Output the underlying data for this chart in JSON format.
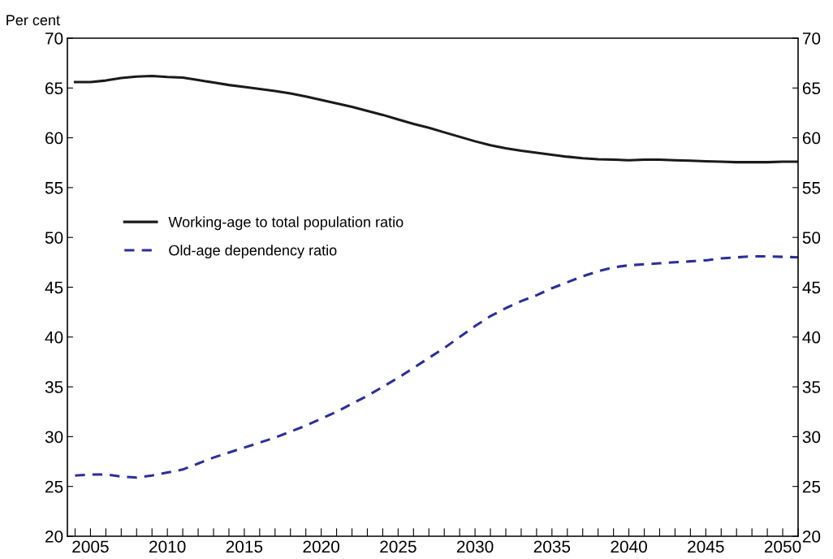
{
  "chart_data": {
    "type": "line",
    "ylabel": "Per cent",
    "x": [
      2004,
      2005,
      2006,
      2007,
      2008,
      2009,
      2010,
      2011,
      2012,
      2013,
      2014,
      2015,
      2016,
      2017,
      2018,
      2019,
      2020,
      2021,
      2022,
      2023,
      2024,
      2025,
      2026,
      2027,
      2028,
      2029,
      2030,
      2031,
      2032,
      2033,
      2034,
      2035,
      2036,
      2037,
      2038,
      2039,
      2040,
      2041,
      2042,
      2043,
      2044,
      2045,
      2046,
      2047,
      2048,
      2049,
      2050,
      2051
    ],
    "series": [
      {
        "name": "Working-age to total population ratio",
        "color": "#1a1a1a",
        "line_style": "solid",
        "values": [
          65.6,
          65.6,
          65.75,
          66.0,
          66.15,
          66.2,
          66.1,
          66.05,
          65.8,
          65.55,
          65.3,
          65.1,
          64.9,
          64.7,
          64.45,
          64.15,
          63.8,
          63.45,
          63.1,
          62.7,
          62.3,
          61.85,
          61.4,
          61.0,
          60.55,
          60.1,
          59.65,
          59.25,
          58.95,
          58.7,
          58.5,
          58.3,
          58.1,
          57.95,
          57.85,
          57.8,
          57.75,
          57.8,
          57.8,
          57.75,
          57.7,
          57.65,
          57.6,
          57.55,
          57.55,
          57.55,
          57.6,
          57.6
        ]
      },
      {
        "name": "Old-age dependency ratio",
        "color": "#2b2f9a",
        "line_style": "dashed",
        "values": [
          26.1,
          26.2,
          26.2,
          26.0,
          25.9,
          26.1,
          26.4,
          26.7,
          27.3,
          27.9,
          28.4,
          28.9,
          29.4,
          29.9,
          30.5,
          31.1,
          31.8,
          32.5,
          33.3,
          34.1,
          35.0,
          35.9,
          36.9,
          37.9,
          38.9,
          40.0,
          41.1,
          42.1,
          42.9,
          43.6,
          44.2,
          44.9,
          45.5,
          46.1,
          46.6,
          47.0,
          47.2,
          47.3,
          47.4,
          47.5,
          47.6,
          47.7,
          47.9,
          48.0,
          48.1,
          48.1,
          48.05,
          48.0
        ]
      }
    ],
    "xlim": [
      2003.5,
      2051.0
    ],
    "xticks": [
      {
        "value": 2004,
        "label": null
      },
      2005,
      {
        "value": 2006,
        "label": null
      },
      {
        "value": 2007,
        "label": null
      },
      {
        "value": 2008,
        "label": null
      },
      {
        "value": 2009,
        "label": null
      },
      2010,
      {
        "value": 2011,
        "label": null
      },
      {
        "value": 2012,
        "label": null
      },
      {
        "value": 2013,
        "label": null
      },
      {
        "value": 2014,
        "label": null
      },
      2015,
      {
        "value": 2016,
        "label": null
      },
      {
        "value": 2017,
        "label": null
      },
      {
        "value": 2018,
        "label": null
      },
      {
        "value": 2019,
        "label": null
      },
      2020,
      {
        "value": 2021,
        "label": null
      },
      {
        "value": 2022,
        "label": null
      },
      {
        "value": 2023,
        "label": null
      },
      {
        "value": 2024,
        "label": null
      },
      2025,
      {
        "value": 2026,
        "label": null
      },
      {
        "value": 2027,
        "label": null
      },
      {
        "value": 2028,
        "label": null
      },
      {
        "value": 2029,
        "label": null
      },
      2030,
      {
        "value": 2031,
        "label": null
      },
      {
        "value": 2032,
        "label": null
      },
      {
        "value": 2033,
        "label": null
      },
      {
        "value": 2034,
        "label": null
      },
      2035,
      {
        "value": 2036,
        "label": null
      },
      {
        "value": 2037,
        "label": null
      },
      {
        "value": 2038,
        "label": null
      },
      {
        "value": 2039,
        "label": null
      },
      2040,
      {
        "value": 2041,
        "label": null
      },
      {
        "value": 2042,
        "label": null
      },
      {
        "value": 2043,
        "label": null
      },
      {
        "value": 2044,
        "label": null
      },
      2045,
      {
        "value": 2046,
        "label": null
      },
      {
        "value": 2047,
        "label": null
      },
      {
        "value": 2048,
        "label": null
      },
      {
        "value": 2049,
        "label": null
      },
      2050,
      {
        "value": 2051,
        "label": null
      }
    ],
    "ylim": [
      20,
      70
    ],
    "yticks": [
      20,
      25,
      30,
      35,
      40,
      45,
      50,
      55,
      60,
      65,
      70
    ],
    "y2lim": [
      20,
      70
    ],
    "y2ticks": [
      20,
      25,
      30,
      35,
      40,
      45,
      50,
      55,
      60,
      65,
      70
    ],
    "grid": false,
    "legend": "left",
    "marker": "none"
  }
}
